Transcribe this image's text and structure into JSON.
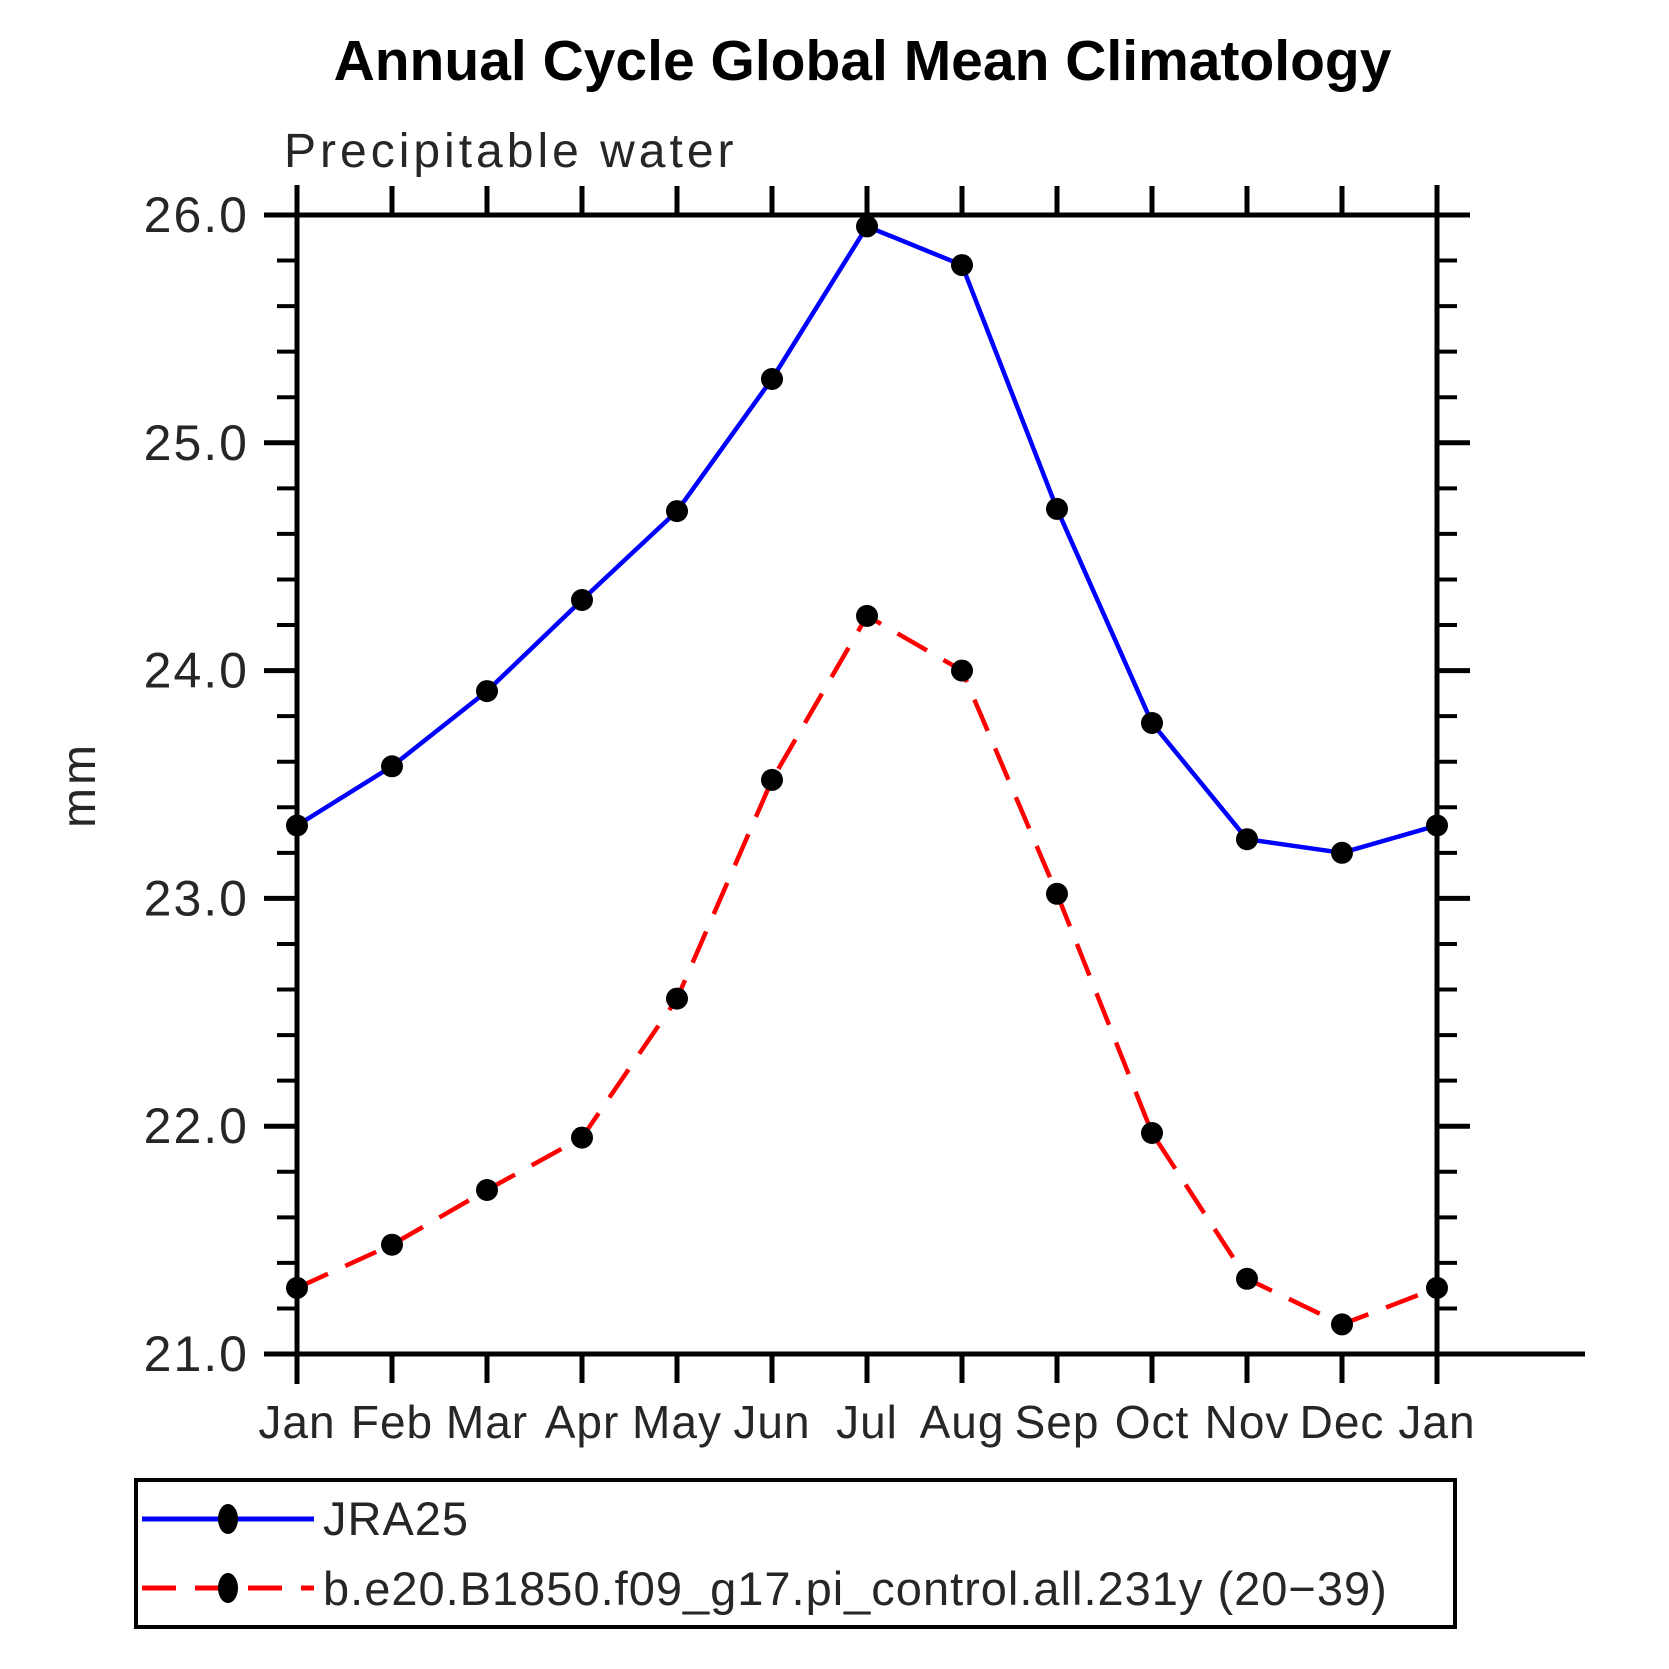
{
  "title": "Annual Cycle Global Mean Climatology",
  "subtitle": "Precipitable water",
  "chart_data": {
    "type": "line",
    "title": "Annual Cycle Global Mean Climatology",
    "subtitle": "Precipitable water",
    "ylabel": "mm",
    "xlabel": "",
    "categories": [
      "Jan",
      "Feb",
      "Mar",
      "Apr",
      "May",
      "Jun",
      "Jul",
      "Aug",
      "Sep",
      "Oct",
      "Nov",
      "Dec",
      "Jan"
    ],
    "ylim": [
      21.0,
      26.0
    ],
    "ytick_major": [
      21.0,
      22.0,
      23.0,
      24.0,
      25.0,
      26.0
    ],
    "ytick_minor_step": 0.2,
    "ytick_label_format": "one_decimal",
    "grid": false,
    "legend_position": "bottom",
    "axis_color": "#000000",
    "marker_color": "#000000",
    "series": [
      {
        "name": "JRA25",
        "color": "#0000ff",
        "style": "solid",
        "marker": "circle",
        "values": [
          23.32,
          23.58,
          23.91,
          24.31,
          24.7,
          25.28,
          25.95,
          25.78,
          24.71,
          23.77,
          23.26,
          23.2,
          23.32
        ]
      },
      {
        "name": "b.e20.B1850.f09_g17.pi_control.all.231y (20−39)",
        "color": "#ff0000",
        "style": "dashed",
        "marker": "circle",
        "values": [
          21.29,
          21.48,
          21.72,
          21.95,
          22.56,
          23.52,
          24.24,
          24.0,
          23.02,
          21.97,
          21.33,
          21.13,
          21.29
        ]
      }
    ]
  },
  "legend": {
    "items": [
      {
        "label": "JRA25"
      },
      {
        "label": "b.e20.B1850.f09_g17.pi_control.all.231y (20−39)"
      }
    ]
  }
}
